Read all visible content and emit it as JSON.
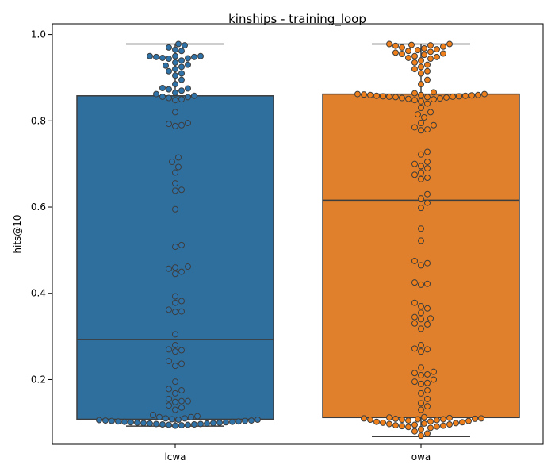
{
  "chart_data": {
    "type": "box",
    "title": "kinships - training_loop",
    "xlabel": "",
    "ylabel": "hits@10",
    "ylim": [
      0.05,
      1.025
    ],
    "yticks": [
      0.2,
      0.4,
      0.6,
      0.8,
      1.0
    ],
    "ytick_labels": [
      "0.2",
      "0.4",
      "0.6",
      "0.8",
      "1.0"
    ],
    "categories": [
      "lcwa",
      "owa"
    ],
    "colors": {
      "lcwa_box": "#2e6f9e",
      "owa_box": "#e0802c",
      "lcwa_point": "#2e72a8",
      "owa_point": "#ef7f1a",
      "edge": "#3d3d3d"
    },
    "boxes": [
      {
        "category": "lcwa",
        "whisker_low": 0.092,
        "q1": 0.108,
        "median": 0.293,
        "q3": 0.858,
        "whisker_high": 0.978
      },
      {
        "category": "owa",
        "whisker_low": 0.068,
        "q1": 0.112,
        "median": 0.616,
        "q3": 0.862,
        "whisker_high": 0.978
      }
    ],
    "points": {
      "lcwa": [
        0.978,
        0.975,
        0.97,
        0.965,
        0.962,
        0.95,
        0.95,
        0.95,
        0.948,
        0.948,
        0.946,
        0.945,
        0.944,
        0.94,
        0.935,
        0.93,
        0.928,
        0.925,
        0.92,
        0.915,
        0.91,
        0.905,
        0.895,
        0.885,
        0.876,
        0.875,
        0.873,
        0.87,
        0.865,
        0.862,
        0.858,
        0.856,
        0.855,
        0.853,
        0.85,
        0.848,
        0.82,
        0.795,
        0.793,
        0.79,
        0.788,
        0.715,
        0.705,
        0.693,
        0.68,
        0.655,
        0.64,
        0.638,
        0.595,
        0.512,
        0.508,
        0.462,
        0.46,
        0.457,
        0.45,
        0.445,
        0.393,
        0.382,
        0.378,
        0.362,
        0.358,
        0.357,
        0.305,
        0.28,
        0.27,
        0.268,
        0.265,
        0.243,
        0.237,
        0.232,
        0.195,
        0.178,
        0.175,
        0.168,
        0.155,
        0.15,
        0.15,
        0.148,
        0.14,
        0.135,
        0.13,
        0.118,
        0.115,
        0.113,
        0.113,
        0.11,
        0.11,
        0.108,
        0.107,
        0.107,
        0.106,
        0.105,
        0.105,
        0.104,
        0.104,
        0.103,
        0.103,
        0.102,
        0.102,
        0.101,
        0.101,
        0.1,
        0.1,
        0.099,
        0.099,
        0.098,
        0.098,
        0.097,
        0.097,
        0.096,
        0.096,
        0.095,
        0.095,
        0.094,
        0.093
      ],
      "owa": [
        0.978,
        0.978,
        0.976,
        0.975,
        0.974,
        0.972,
        0.97,
        0.968,
        0.966,
        0.964,
        0.962,
        0.96,
        0.958,
        0.956,
        0.955,
        0.953,
        0.95,
        0.948,
        0.946,
        0.944,
        0.94,
        0.935,
        0.93,
        0.925,
        0.92,
        0.915,
        0.91,
        0.895,
        0.885,
        0.866,
        0.864,
        0.862,
        0.862,
        0.861,
        0.86,
        0.86,
        0.86,
        0.859,
        0.858,
        0.858,
        0.857,
        0.857,
        0.856,
        0.856,
        0.855,
        0.855,
        0.854,
        0.853,
        0.852,
        0.851,
        0.85,
        0.848,
        0.845,
        0.84,
        0.83,
        0.82,
        0.815,
        0.808,
        0.795,
        0.79,
        0.785,
        0.78,
        0.778,
        0.728,
        0.722,
        0.705,
        0.7,
        0.695,
        0.69,
        0.68,
        0.675,
        0.668,
        0.665,
        0.63,
        0.62,
        0.61,
        0.598,
        0.55,
        0.522,
        0.475,
        0.47,
        0.465,
        0.425,
        0.422,
        0.42,
        0.378,
        0.37,
        0.365,
        0.355,
        0.345,
        0.342,
        0.34,
        0.33,
        0.328,
        0.318,
        0.28,
        0.272,
        0.27,
        0.265,
        0.228,
        0.218,
        0.215,
        0.212,
        0.21,
        0.2,
        0.195,
        0.192,
        0.19,
        0.175,
        0.168,
        0.155,
        0.145,
        0.138,
        0.13,
        0.113,
        0.112,
        0.111,
        0.11,
        0.11,
        0.109,
        0.109,
        0.108,
        0.108,
        0.107,
        0.107,
        0.106,
        0.105,
        0.104,
        0.103,
        0.102,
        0.101,
        0.1,
        0.099,
        0.098,
        0.097,
        0.096,
        0.095,
        0.094,
        0.093,
        0.092,
        0.091,
        0.09,
        0.088,
        0.085,
        0.08,
        0.075,
        0.07
      ]
    }
  }
}
